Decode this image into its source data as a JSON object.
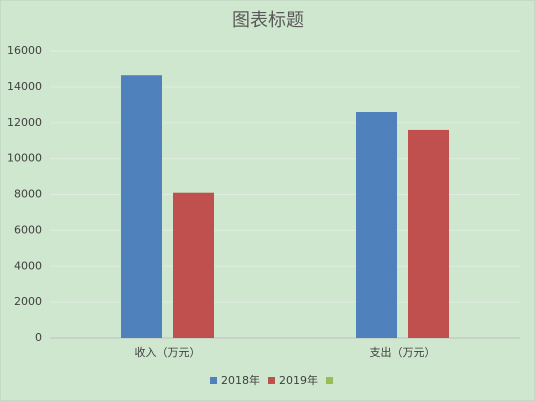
{
  "chart_data": {
    "type": "bar",
    "title": "图表标题",
    "categories": [
      "收入（万元）",
      "支出（万元）"
    ],
    "series": [
      {
        "name": "2018年",
        "color": "#4f81bd",
        "values": [
          14650,
          12600
        ]
      },
      {
        "name": "2019年",
        "color": "#c0504d",
        "values": [
          8100,
          11600
        ]
      },
      {
        "color": "#9bbb59",
        "values": [
          null,
          null
        ]
      }
    ],
    "ylim": [
      0,
      16000
    ],
    "yticks": [
      0,
      2000,
      4000,
      6000,
      8000,
      10000,
      12000,
      14000,
      16000
    ],
    "grid": true,
    "legend": "bottom"
  }
}
